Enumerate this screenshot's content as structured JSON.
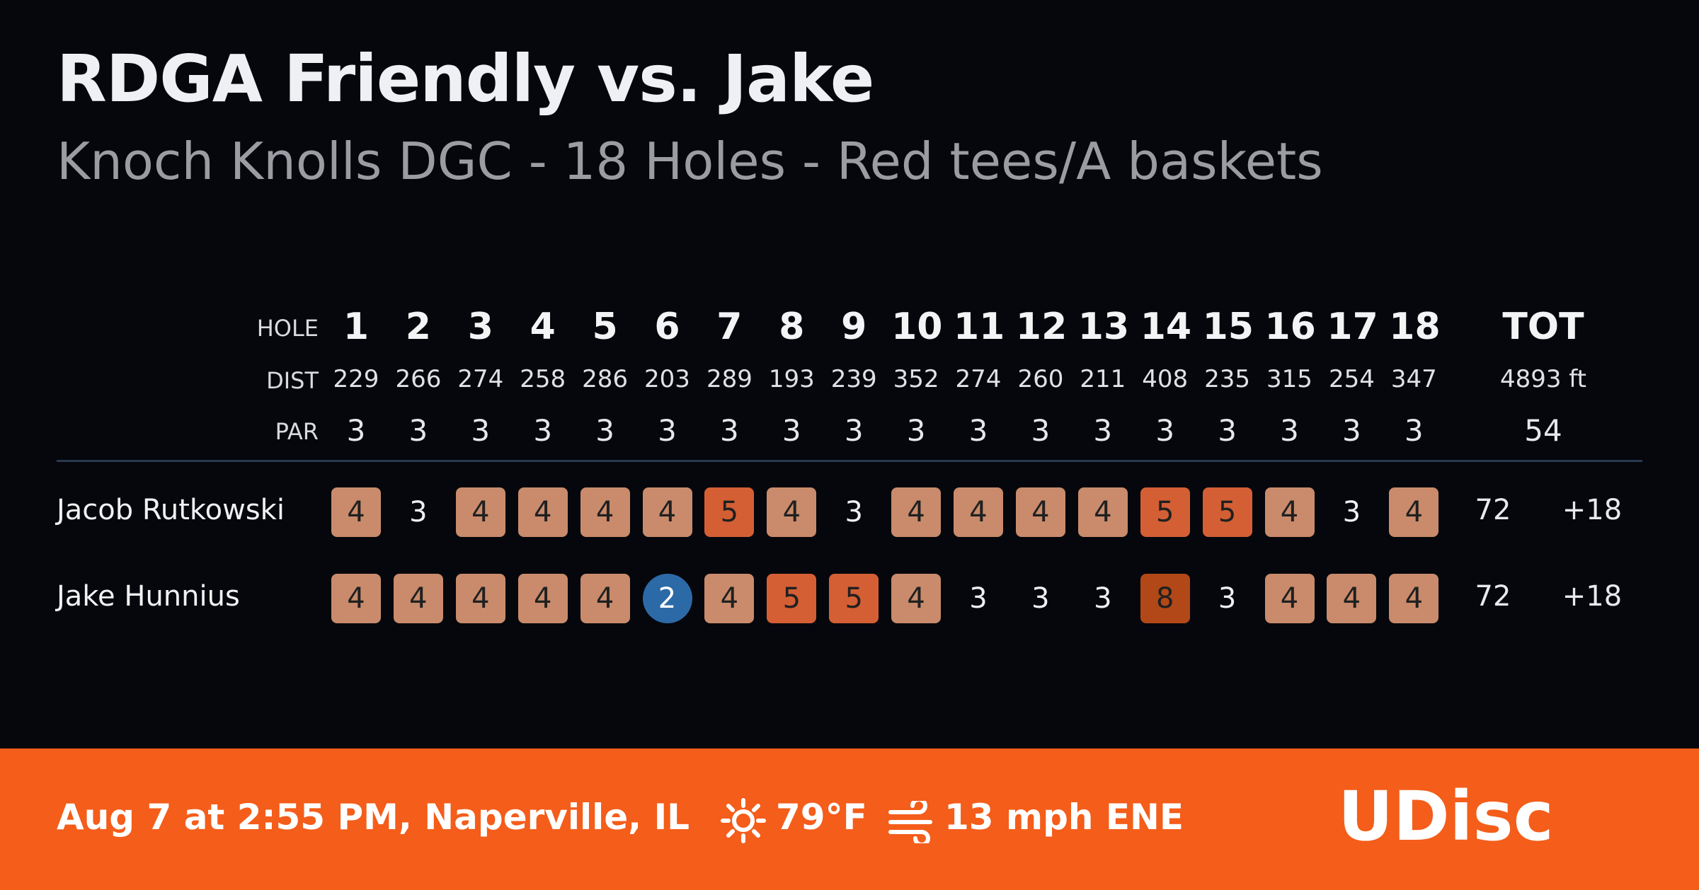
{
  "header": {
    "title": "RDGA Friendly vs. Jake",
    "subtitle": "Knoch Knolls DGC - 18 Holes - Red tees/A baskets"
  },
  "scorecard": {
    "labels": {
      "hole": "HOLE",
      "dist": "DIST",
      "par": "PAR",
      "tot": "TOT"
    },
    "holes": [
      "1",
      "2",
      "3",
      "4",
      "5",
      "6",
      "7",
      "8",
      "9",
      "10",
      "11",
      "12",
      "13",
      "14",
      "15",
      "16",
      "17",
      "18"
    ],
    "dist": [
      "229",
      "266",
      "274",
      "258",
      "286",
      "203",
      "289",
      "193",
      "239",
      "352",
      "274",
      "260",
      "211",
      "408",
      "235",
      "315",
      "254",
      "347"
    ],
    "par": [
      "3",
      "3",
      "3",
      "3",
      "3",
      "3",
      "3",
      "3",
      "3",
      "3",
      "3",
      "3",
      "3",
      "3",
      "3",
      "3",
      "3",
      "3"
    ],
    "total_dist": "4893 ft",
    "total_par": "54",
    "players": [
      {
        "name": "Jacob Rutkowski",
        "scores": [
          "4",
          "3",
          "4",
          "4",
          "4",
          "4",
          "5",
          "4",
          "3",
          "4",
          "4",
          "4",
          "4",
          "5",
          "5",
          "4",
          "3",
          "4"
        ],
        "total": "72",
        "plus_minus": "+18"
      },
      {
        "name": "Jake Hunnius",
        "scores": [
          "4",
          "4",
          "4",
          "4",
          "4",
          "2",
          "4",
          "5",
          "5",
          "4",
          "3",
          "3",
          "3",
          "8",
          "3",
          "4",
          "4",
          "4"
        ],
        "total": "72",
        "plus_minus": "+18"
      }
    ],
    "colors": {
      "bogey": "#c98b6b",
      "double_bogey": "#d45f34",
      "triple_plus": "#b24818",
      "birdie": "#2c6aa7",
      "par": "transparent"
    }
  },
  "footer": {
    "date_location": "Aug 7 at 2:55 PM, Naperville, IL",
    "weather_icon": "sun-icon",
    "temperature": "79°F",
    "wind_icon": "wind-icon",
    "wind": "13 mph ENE",
    "logo": "UDisc",
    "background": "#f45d1a"
  }
}
